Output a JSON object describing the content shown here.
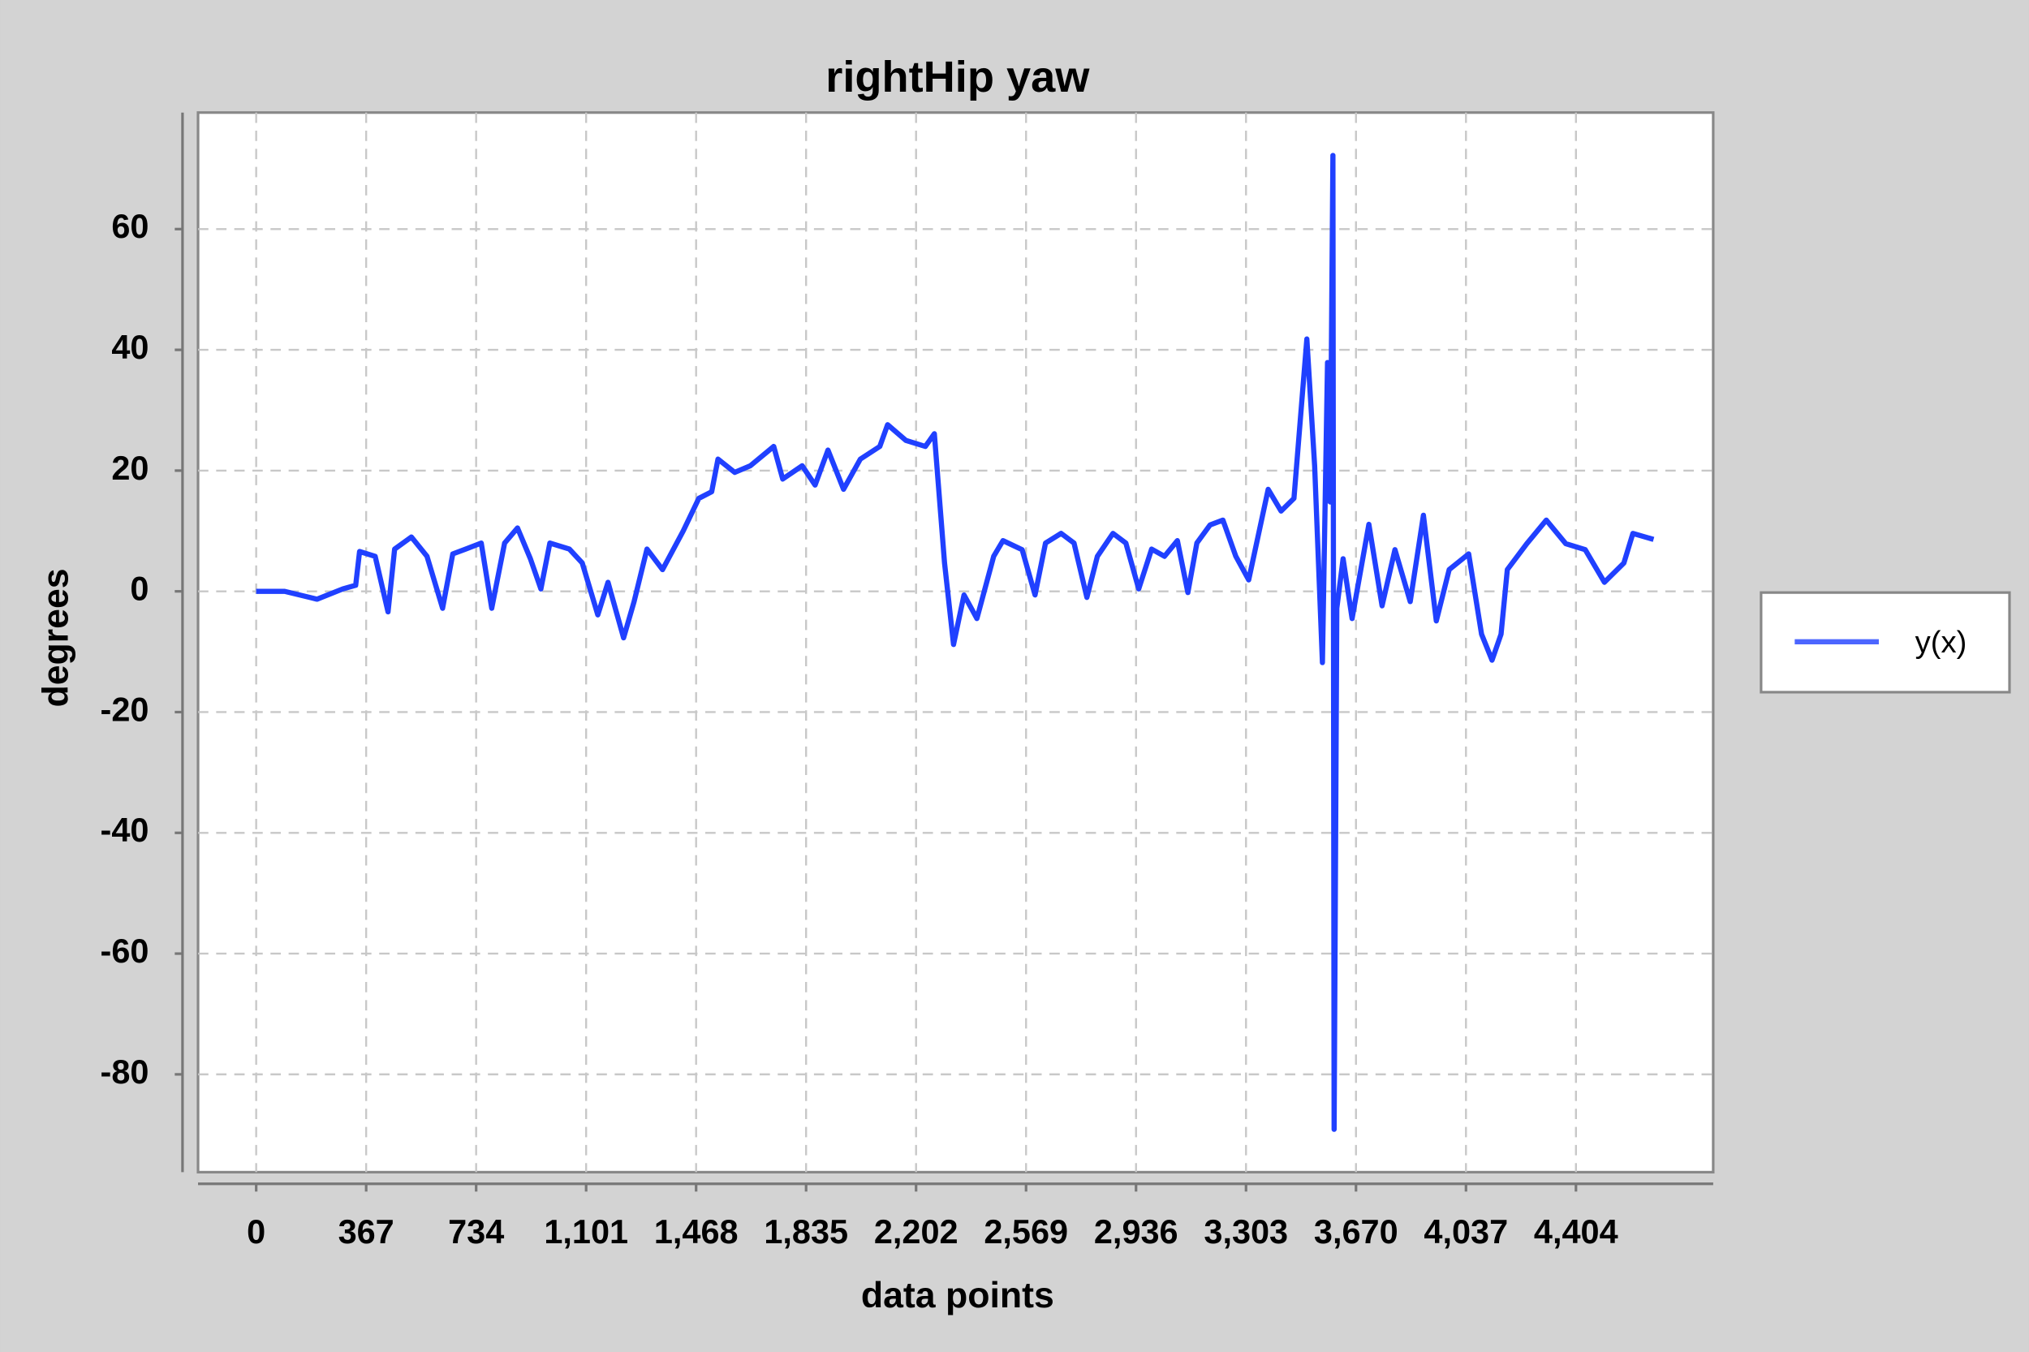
{
  "chart_data": {
    "type": "line",
    "title": "rightHip yaw",
    "xlabel": "data points",
    "ylabel": "degrees",
    "x": [
      0,
      95,
      203,
      289,
      332,
      345,
      397,
      440,
      462,
      518,
      570,
      622,
      656,
      699,
      751,
      786,
      829,
      872,
      915,
      950,
      980,
      1045,
      1088,
      1140,
      1174,
      1226,
      1261,
      1304,
      1356,
      1425,
      1477,
      1520,
      1541,
      1597,
      1649,
      1727,
      1757,
      1822,
      1865,
      1908,
      1960,
      2016,
      2081,
      2107,
      2168,
      2233,
      2263,
      2297,
      2327,
      2362,
      2405,
      2461,
      2492,
      2556,
      2599,
      2634,
      2686,
      2729,
      2772,
      2807,
      2859,
      2902,
      2945,
      2988,
      3031,
      3074,
      3109,
      3139,
      3183,
      3226,
      3269,
      3312,
      3377,
      3420,
      3463,
      3506,
      3532,
      3558,
      3575,
      3584,
      3593,
      3597,
      3606,
      3627,
      3657,
      3713,
      3757,
      3800,
      3851,
      3895,
      3938,
      3981,
      4046,
      4089,
      4124,
      4154,
      4175,
      4240,
      4305,
      4370,
      4435,
      4499,
      4564,
      4594,
      4663
    ],
    "series": [
      {
        "name": "y(x)",
        "color": "#2040ff",
        "values": [
          0,
          0,
          -1.3,
          0.4,
          1,
          6.6,
          5.8,
          -3.4,
          7,
          9,
          5.8,
          -2.8,
          6.2,
          7,
          8,
          -2.8,
          8,
          10.5,
          5.4,
          0.4,
          8,
          7,
          4.7,
          -3.9,
          1.5,
          -7.7,
          -1.7,
          7,
          3.6,
          10,
          15.4,
          16.5,
          21.9,
          19.7,
          20.8,
          24,
          18.6,
          20.8,
          17.6,
          23.4,
          16.9,
          21.9,
          24,
          27.6,
          25,
          24,
          26.1,
          4.7,
          -8.8,
          -0.6,
          -4.5,
          5.8,
          8.4,
          6.9,
          -0.6,
          8,
          9.6,
          8,
          -1,
          5.8,
          9.6,
          8,
          0.4,
          7,
          5.8,
          8.4,
          -0.2,
          8,
          11,
          11.8,
          5.8,
          1.9,
          16.9,
          13.3,
          15.4,
          41.8,
          20.8,
          -11.8,
          37.9,
          14.8,
          72.2,
          -89.1,
          -2.8,
          5.4,
          -4.5,
          11.1,
          -2.4,
          6.9,
          -1.7,
          12.6,
          -4.9,
          3.6,
          6.2,
          -7.1,
          -11.4,
          -7.1,
          3.6,
          7.9,
          11.8,
          7.9,
          6.9,
          1.5,
          4.7,
          9.6,
          8.6
        ]
      }
    ],
    "xlim": [
      -194,
      4862
    ],
    "ylim": [
      -96.2,
      79.3
    ],
    "xticks": [
      0,
      367,
      734,
      {
        "value": 1101,
        "label": "1,101"
      },
      {
        "value": 1468,
        "label": "1,468"
      },
      {
        "value": 1835,
        "label": "1,835"
      },
      {
        "value": 2202,
        "label": "2,202"
      },
      {
        "value": 2569,
        "label": "2,569"
      },
      {
        "value": 2936,
        "label": "2,936"
      },
      {
        "value": 3303,
        "label": "3,303"
      },
      {
        "value": 3670,
        "label": "3,670"
      },
      {
        "value": 4037,
        "label": "4,037"
      },
      {
        "value": 4404,
        "label": "4,404"
      }
    ],
    "yticks": [
      -80,
      -60,
      -40,
      -20,
      0,
      20,
      40,
      60
    ],
    "grid": true,
    "legend": "right"
  }
}
